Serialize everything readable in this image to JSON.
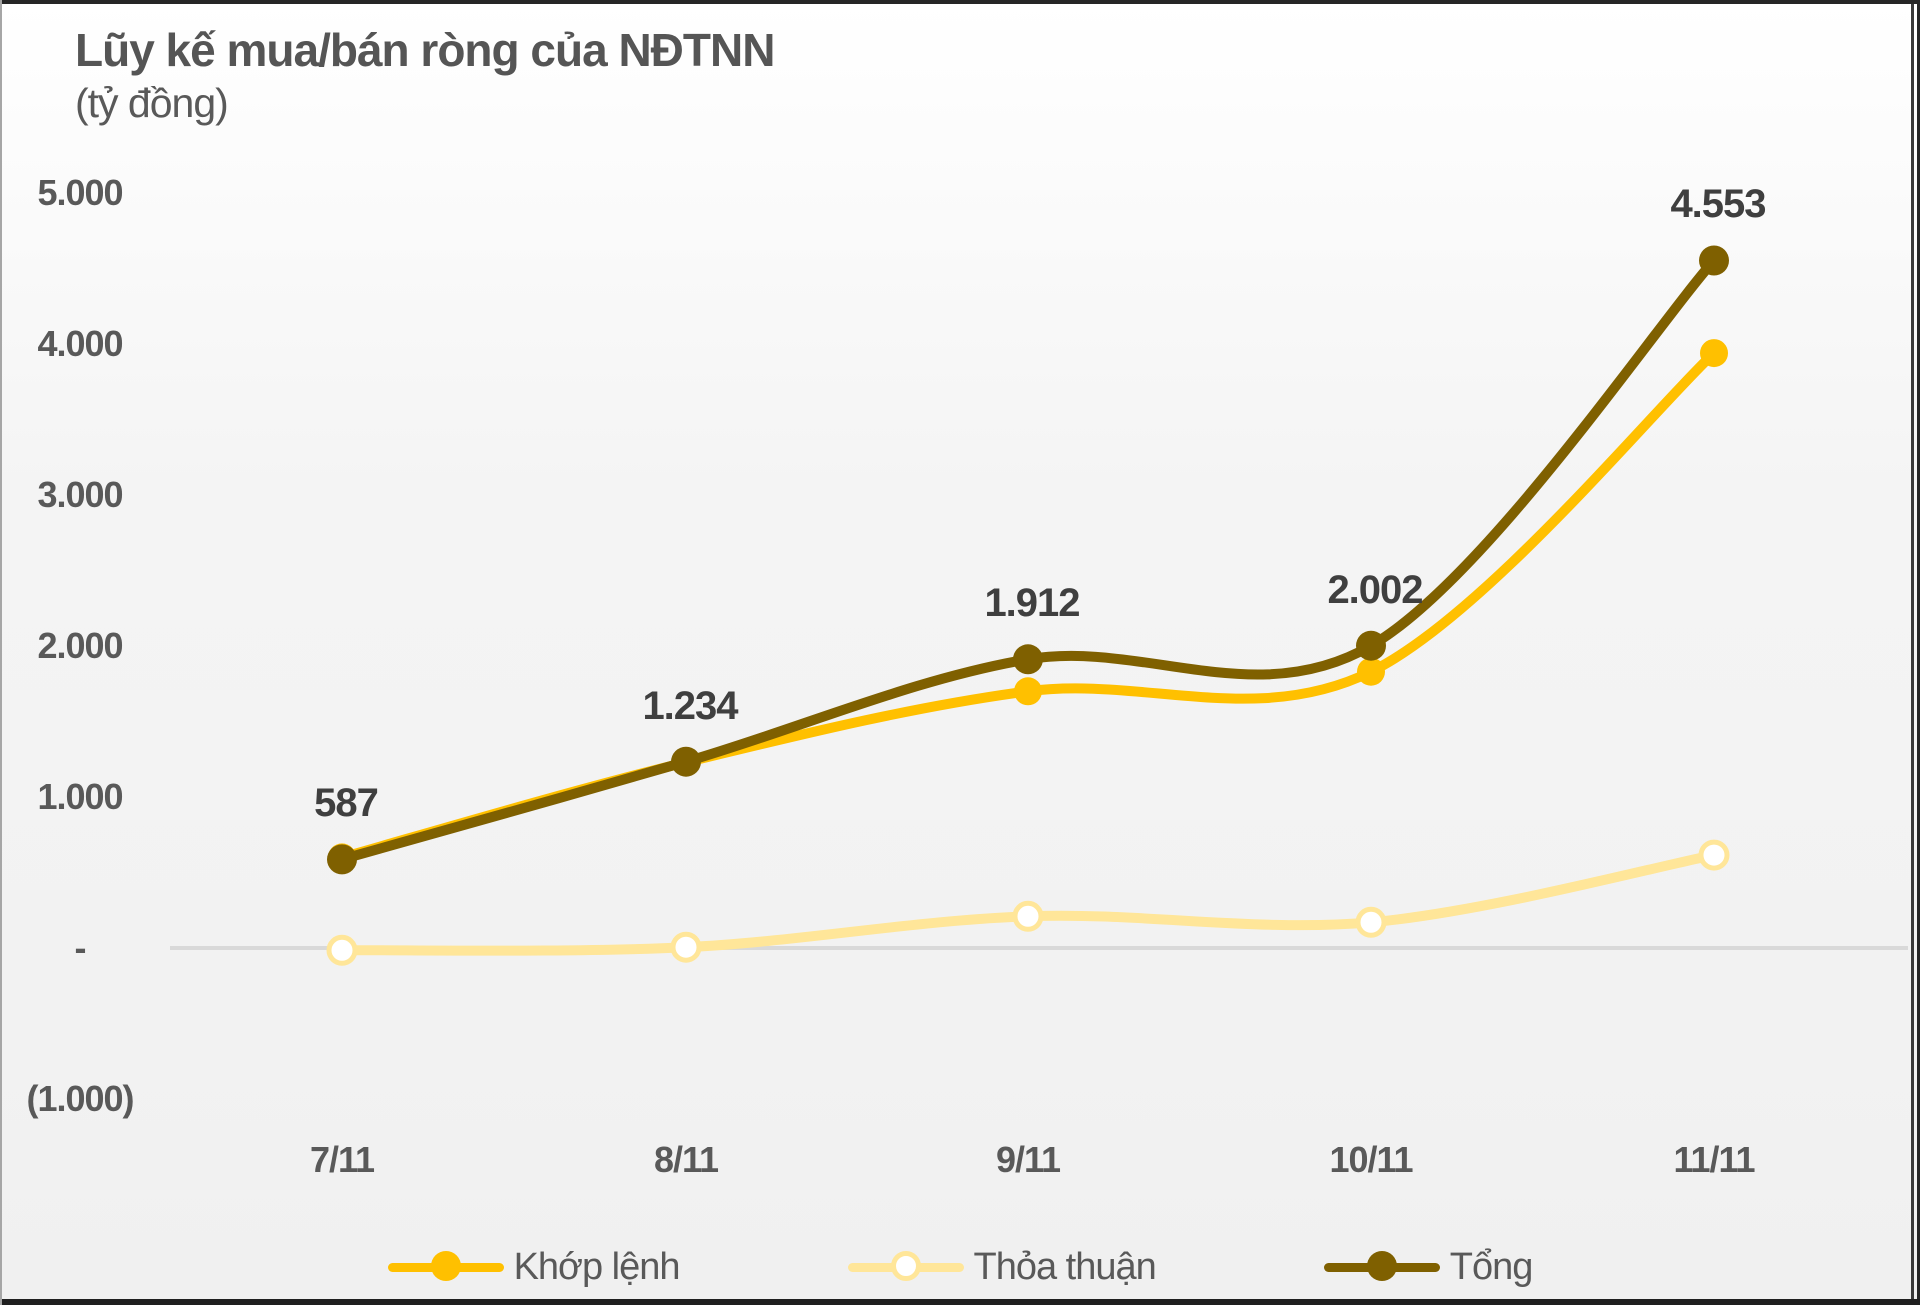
{
  "title": "Lũy kế mua/bán ròng của NĐTNN",
  "subtitle": "(tỷ đồng)",
  "colors": {
    "matched": "#FFC000",
    "negotiated": "#FFE699",
    "total": "#7F6000",
    "axis_text": "#595959",
    "data_label_text": "#3F3F3F",
    "zero_gridline": "#D9D9D9"
  },
  "chart_data": {
    "type": "line",
    "title": "Lũy kế mua/bán ròng của NĐTNN",
    "unit_label": "(tỷ đồng)",
    "categories": [
      "7/11",
      "8/11",
      "9/11",
      "10/11",
      "11/11"
    ],
    "ylim": [
      -1000,
      5000
    ],
    "grid": "zero-line-only",
    "legend_position": "bottom",
    "y_ticks": [
      {
        "label": "5.000",
        "value": 5000
      },
      {
        "label": "4.000",
        "value": 4000
      },
      {
        "label": "3.000",
        "value": 3000
      },
      {
        "label": "2.000",
        "value": 2000
      },
      {
        "label": "1.000",
        "value": 1000
      },
      {
        "label": "-",
        "value": 0
      },
      {
        "label": "(1.000)",
        "value": -1000
      }
    ],
    "series": [
      {
        "name": "Khớp lệnh",
        "color": "#FFC000",
        "marker_fill": "#FFC000",
        "marker_stroke": "#FFC000",
        "values": [
          600,
          1230,
          1700,
          1830,
          3940
        ],
        "labels": null
      },
      {
        "name": "Thỏa thuận",
        "color": "#FFE699",
        "marker_fill": "#FFFFFF",
        "marker_stroke": "#FFE699",
        "values": [
          -15,
          5,
          210,
          170,
          615
        ],
        "labels": null
      },
      {
        "name": "Tổng",
        "color": "#7F6000",
        "marker_fill": "#7F6000",
        "marker_stroke": "#7F6000",
        "values": [
          587,
          1234,
          1912,
          2002,
          4553
        ],
        "labels": [
          "587",
          "1.234",
          "1.912",
          "2.002",
          "4.553"
        ]
      }
    ]
  }
}
